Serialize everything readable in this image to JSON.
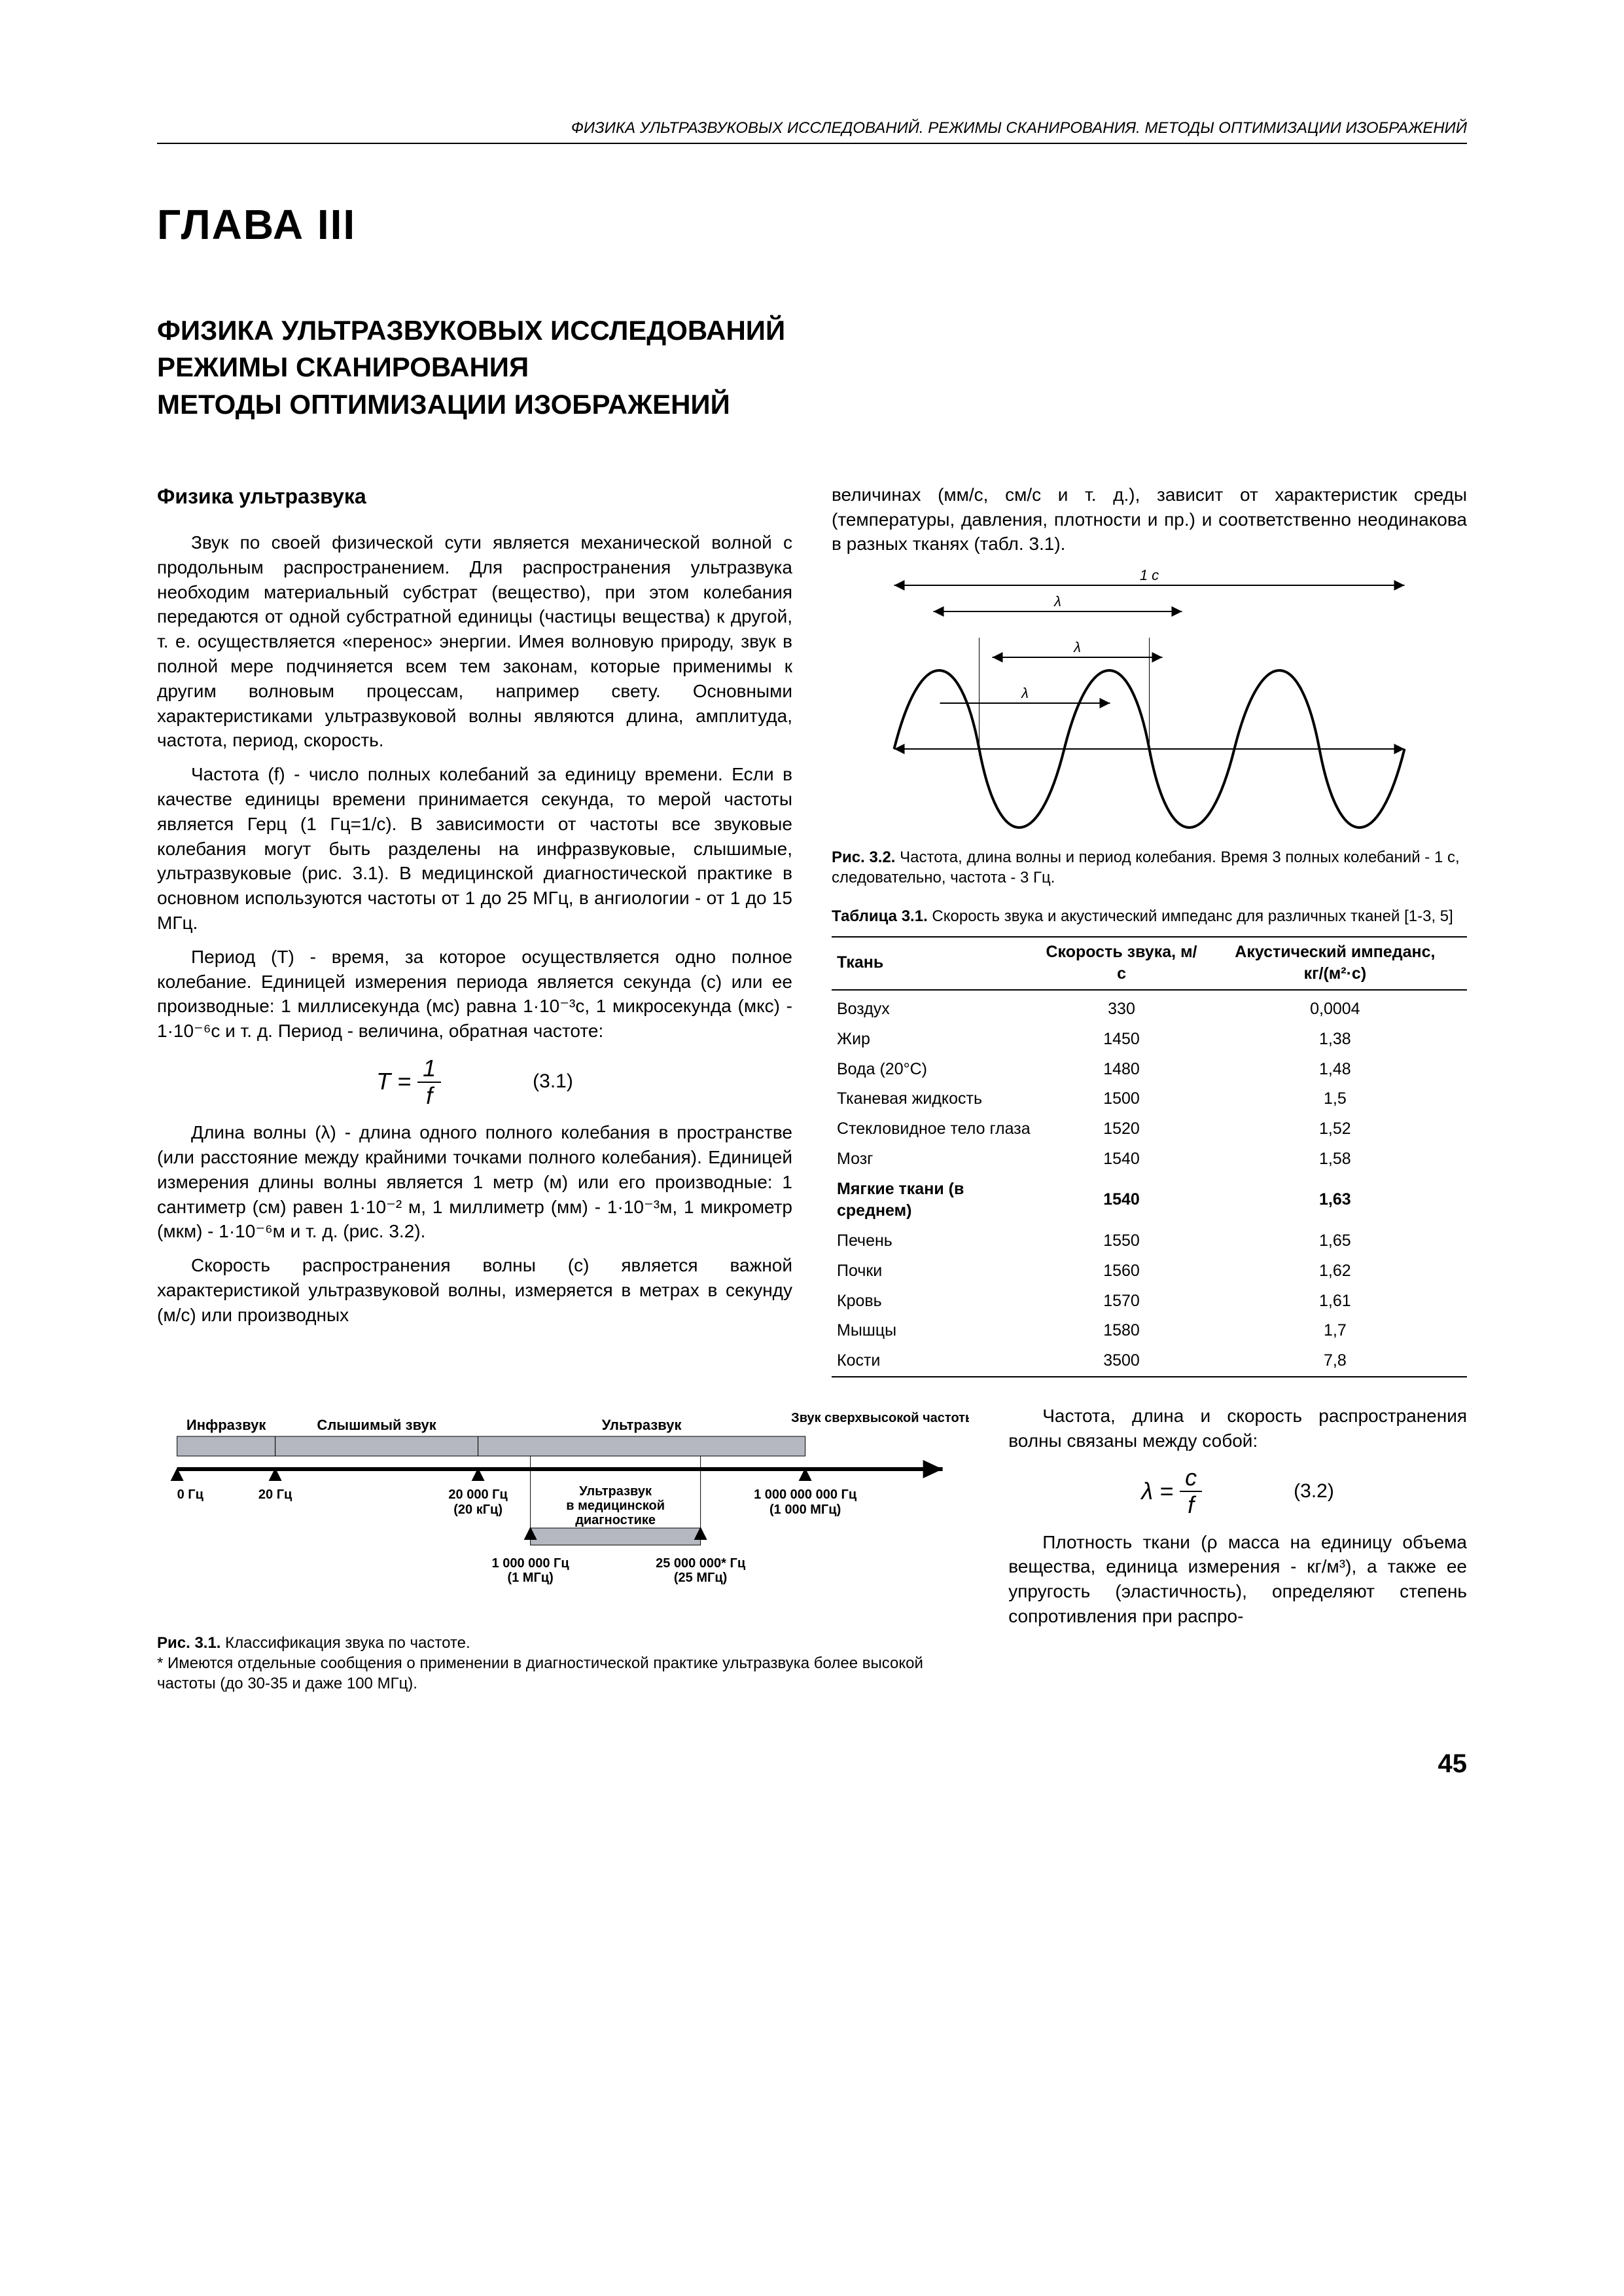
{
  "running_head": "ФИЗИКА УЛЬТРАЗВУКОВЫХ ИССЛЕДОВАНИЙ. РЕЖИМЫ СКАНИРОВАНИЯ. МЕТОДЫ ОПТИМИЗАЦИИ ИЗОБРАЖЕНИЙ",
  "chapter": "ГЛАВА III",
  "title1": "ФИЗИКА УЛЬТРАЗВУКОВЫХ ИССЛЕДОВАНИЙ",
  "title2": "РЕЖИМЫ СКАНИРОВАНИЯ",
  "title3": "МЕТОДЫ ОПТИМИЗАЦИИ ИЗОБРАЖЕНИЙ",
  "subhead": "Физика ультразвука",
  "p1": "Звук по своей физической сути является механической волной с продольным распространением. Для распространения ультразвука необходим материальный субстрат (вещество), при этом колебания передаются от одной субстратной единицы (частицы вещества) к другой, т. е. осуществляется «перенос» энергии. Имея волновую природу, звук в полной мере подчиняется всем тем законам, которые применимы к другим волновым процессам, например свету. Основными характеристиками ультразвуковой волны являются длина, амплитуда, частота, период, скорость.",
  "p2": "Частота (f) - число полных колебаний за единицу времени. Если в качестве единицы времени принимается секунда, то мерой частоты является Герц (1 Гц=1/с). В зависимости от частоты все звуковые колебания могут быть разделены на инфразвуковые, слышимые, ультразвуковые (рис. 3.1). В медицинской диагностической практике в основном используются частоты от 1 до 25 МГц, в ангиологии - от 1 до 15 МГц.",
  "p3": "Период (T) - время, за которое осуществляется одно полное колебание. Единицей измерения периода является секунда (с) или ее производные: 1 миллисекунда (мс) равна 1·10⁻³с, 1 микросекунда (мкс) - 1·10⁻⁶с и т. д. Период - величина, обратная частоте:",
  "eq1_lhs": "T =",
  "eq1_num": "1",
  "eq1_den": "f",
  "eq1_num_label": "(3.1)",
  "p4": "Длина волны (λ) - длина одного полного колебания в пространстве (или расстояние между крайними точками полного колебания). Единицей измерения длины волны является 1 метр (м) или его производные: 1 сантиметр (см) равен 1·10⁻² м, 1 миллиметр (мм) - 1·10⁻³м, 1 микрометр (мкм) - 1·10⁻⁶м и т. д. (рис. 3.2).",
  "p5": "Скорость распространения волны (с) является важной характеристикой ультразвуковой волны, измеряется в метрах в секунду (м/с) или производных",
  "pR1": "величинах (мм/с, см/с и т. д.), зависит от характеристик среды (температуры, давления, плотности и пр.) и соответственно неодинакова в разных тканях (табл. 3.1).",
  "fig32": {
    "label_1c": "1 с",
    "lambda": "λ",
    "caption_b": "Рис. 3.2.",
    "caption": " Частота, длина волны и период колебания. Время 3 полных колебаний - 1 с, следовательно, частота - 3 Гц.",
    "line_color": "#000000",
    "background": "#ffffff"
  },
  "table31": {
    "caption_b": "Таблица 3.1.",
    "caption": " Скорость звука и акустический импеданс для различных тканей [1-3, 5]",
    "col1": "Ткань",
    "col2": "Скорость звука, м/с",
    "col3": "Акустический импеданс, кг/(м²·с)",
    "rows": [
      {
        "t": "Воздух",
        "v": "330",
        "z": "0,0004",
        "b": false
      },
      {
        "t": "Жир",
        "v": "1450",
        "z": "1,38",
        "b": false
      },
      {
        "t": "Вода (20°С)",
        "v": "1480",
        "z": "1,48",
        "b": false
      },
      {
        "t": "Тканевая жидкость",
        "v": "1500",
        "z": "1,5",
        "b": false
      },
      {
        "t": "Стекловидное тело глаза",
        "v": "1520",
        "z": "1,52",
        "b": false
      },
      {
        "t": "Мозг",
        "v": "1540",
        "z": "1,58",
        "b": false
      },
      {
        "t": "Мягкие ткани (в среднем)",
        "v": "1540",
        "z": "1,63",
        "b": true
      },
      {
        "t": "Печень",
        "v": "1550",
        "z": "1,65",
        "b": false
      },
      {
        "t": "Почки",
        "v": "1560",
        "z": "1,62",
        "b": false
      },
      {
        "t": "Кровь",
        "v": "1570",
        "z": "1,61",
        "b": false
      },
      {
        "t": "Мышцы",
        "v": "1580",
        "z": "1,7",
        "b": false
      },
      {
        "t": "Кости",
        "v": "3500",
        "z": "7,8",
        "b": false
      }
    ]
  },
  "fig31": {
    "infra": "Инфразвук",
    "audible": "Слышимый звук",
    "ultra": "Ультразвук",
    "hyper": "Звук сверхвысокой частоты",
    "m0": "0 Гц",
    "m20": "20 Гц",
    "m20k_a": "20 000 Гц",
    "m20k_b": "(20 кГц)",
    "med_a": "Ультразвук",
    "med_b": "в медицинской",
    "med_c": "диагностике",
    "m1m_a": "1 000 000 Гц",
    "m1m_b": "(1 МГц)",
    "m25m_a": "25 000 000* Гц",
    "m25m_b": "(25 МГц)",
    "m1g_a": "1 000 000 000 Гц",
    "m1g_b": "(1 000 МГц)",
    "caption_b": "Рис. 3.1.",
    "caption": " Классификация звука по частоте.",
    "note": "* Имеются отдельные сообщения о применении в диагностической практике ультразвука более высокой частоты (до 30-35 и даже 100 МГц).",
    "band_color": "#b5b8c0",
    "line_color": "#000000"
  },
  "pBR1": "Частота, длина и скорость распространения волны связаны между собой:",
  "eq2_lhs": "λ =",
  "eq2_num": "c",
  "eq2_den": "f",
  "eq2_num_label": "(3.2)",
  "pBR2": "Плотность ткани (ρ масса на единицу объема вещества, единица измерения - кг/м³), а также ее упругость (эластичность), определяют степень сопротивления при распро-",
  "pagenum": "45"
}
